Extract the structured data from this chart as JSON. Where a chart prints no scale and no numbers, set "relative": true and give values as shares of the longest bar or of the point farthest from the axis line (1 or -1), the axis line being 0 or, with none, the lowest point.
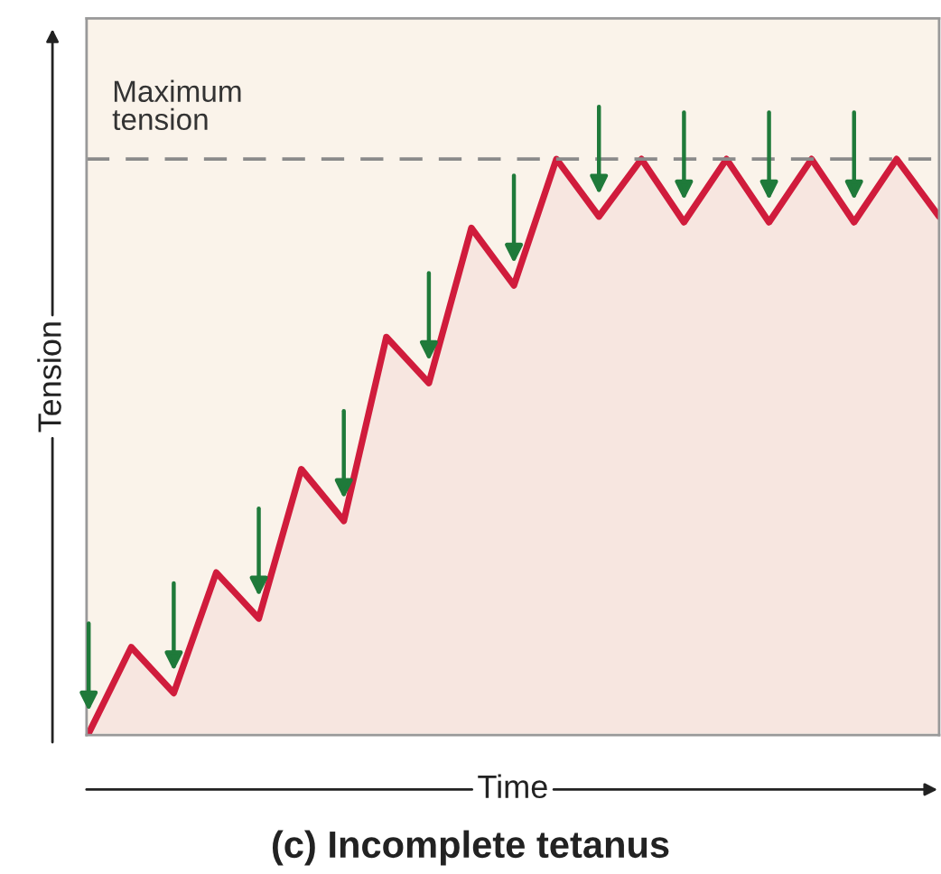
{
  "chart_data": {
    "type": "area",
    "relative": true,
    "title": "(c) Incomplete tetanus",
    "xlabel": "Time",
    "ylabel": "Tension",
    "categories": [
      null,
      null,
      null,
      null,
      null,
      null,
      null,
      null,
      null,
      null,
      null,
      null,
      null,
      null,
      null,
      null,
      null,
      null,
      null,
      null,
      null
    ],
    "series": [
      {
        "color": "#d01c3c",
        "values": [
          0.0,
          0.15,
          0.07,
          0.28,
          0.2,
          0.46,
          0.37,
          0.69,
          0.61,
          0.88,
          0.78,
          1.0,
          0.9,
          1.0,
          0.89,
          1.0,
          0.89,
          1.0,
          0.89,
          1.0,
          0.9
        ]
      }
    ],
    "ref_lines": [
      {
        "axis": "y",
        "value": 1.0,
        "label": "Maximum tension",
        "color": "#8a8a8a",
        "line_style": "dashed"
      }
    ],
    "tick_labels": false
  }
}
